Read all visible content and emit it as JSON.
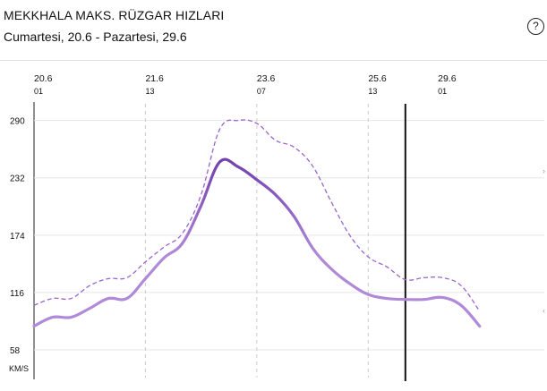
{
  "header": {
    "title": "MEKKHALA MAKS. RÜZGAR HIZLARI",
    "subtitle": "Cumartesi, 20.6 - Pazartesi, 29.6",
    "help_icon": "question-mark-circle-icon",
    "help_label": "?"
  },
  "colors": {
    "line_light": "#b08ad8",
    "line_dark": "#5c2f91",
    "dashed": "#9a64cf",
    "gridline": "#e6e6e6",
    "vgrid": "#cccccc",
    "cursor": "#111111"
  },
  "chart_data": {
    "type": "line",
    "title": "MEKKHALA MAKS. RÜZGAR HIZLARI",
    "subtitle": "Cumartesi, 20.6 - Pazartesi, 29.6",
    "ylabel": "KM/S",
    "y_unit": "KM/S",
    "yticks": [
      58,
      116,
      174,
      232,
      290
    ],
    "ylim": [
      30,
      305
    ],
    "xlim": [
      0,
      54
    ],
    "x_ticks": [
      {
        "x": 0,
        "date": "20.6",
        "hour": "01"
      },
      {
        "x": 12,
        "date": "21.6",
        "hour": "13"
      },
      {
        "x": 24,
        "date": "23.6",
        "hour": "07"
      },
      {
        "x": 36,
        "date": "25.6",
        "hour": "13"
      },
      {
        "x": 43.5,
        "date": "29.6",
        "hour": "01"
      }
    ],
    "vgrid_x": [
      12,
      24,
      36
    ],
    "cursor_x": 40,
    "grid": true,
    "legend": "none",
    "series": [
      {
        "style": "dashed",
        "points": [
          [
            0,
            103
          ],
          [
            2,
            110
          ],
          [
            4,
            110
          ],
          [
            6,
            123
          ],
          [
            8,
            130
          ],
          [
            10,
            131
          ],
          [
            12,
            147
          ],
          [
            14,
            162
          ],
          [
            16,
            176
          ],
          [
            18,
            215
          ],
          [
            20,
            281
          ],
          [
            22,
            290
          ],
          [
            24,
            287
          ],
          [
            26,
            270
          ],
          [
            28,
            263
          ],
          [
            30,
            244
          ],
          [
            32,
            208
          ],
          [
            34,
            174
          ],
          [
            36,
            152
          ],
          [
            38,
            142
          ],
          [
            40,
            129
          ],
          [
            42,
            131
          ],
          [
            44,
            131
          ],
          [
            46,
            123
          ],
          [
            48,
            97
          ]
        ]
      },
      {
        "style": "solid",
        "points": [
          [
            0,
            82
          ],
          [
            2,
            91
          ],
          [
            4,
            91
          ],
          [
            6,
            100
          ],
          [
            8,
            110
          ],
          [
            10,
            110
          ],
          [
            12,
            130
          ],
          [
            14,
            151
          ],
          [
            16,
            166
          ],
          [
            18,
            204
          ],
          [
            20,
            248
          ],
          [
            22,
            243
          ],
          [
            24,
            230
          ],
          [
            26,
            215
          ],
          [
            28,
            193
          ],
          [
            30,
            161
          ],
          [
            32,
            140
          ],
          [
            34,
            125
          ],
          [
            36,
            114
          ],
          [
            38,
            110
          ],
          [
            40,
            109
          ],
          [
            42,
            109
          ],
          [
            44,
            111
          ],
          [
            46,
            103
          ],
          [
            48,
            82
          ]
        ]
      }
    ]
  }
}
